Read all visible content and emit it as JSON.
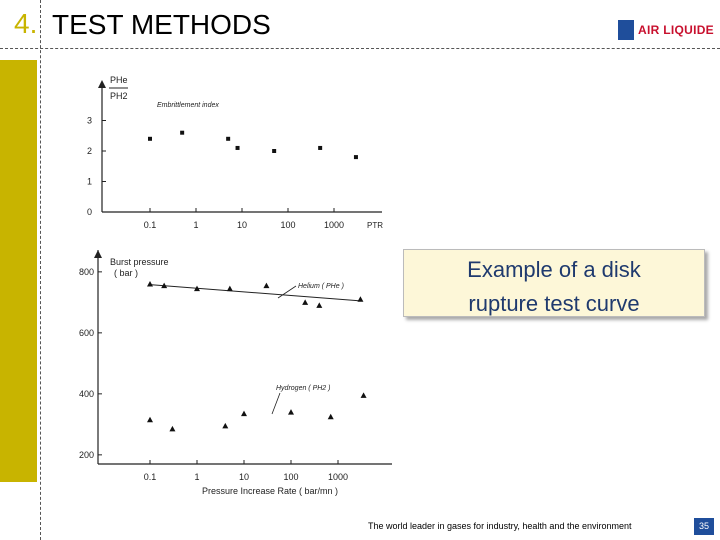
{
  "slide": {
    "number": "4.",
    "title": "TEST METHODS",
    "logo_text": "AIR LIQUIDE",
    "callout_line1": "Example of a disk",
    "callout_line2": "rupture test curve",
    "footer_text": "The world leader in gases for industry, health and the environment",
    "page_number": "35",
    "colors": {
      "accent": "#c8b400",
      "brand_blue": "#1f4e9b",
      "logo_red": "#c8102e",
      "callout_bg": "#fdf7d8"
    }
  },
  "chart_data": [
    {
      "type": "scatter",
      "title": "",
      "ylabel_num": "PHe",
      "ylabel_den": "PH2",
      "annotation": "Embrittlement index",
      "xlabel": "PTR",
      "x_scale": "log",
      "x_ticks": [
        "0.1",
        "1",
        "10",
        "100",
        "1000"
      ],
      "y_ticks": [
        "0",
        "1",
        "2",
        "3"
      ],
      "ylim": [
        0,
        3.5
      ],
      "series": [
        {
          "x": [
            0.1,
            0.5,
            5,
            8,
            50,
            500,
            3000
          ],
          "y": [
            2.4,
            2.6,
            2.4,
            2.1,
            2.0,
            2.1,
            1.8
          ]
        }
      ]
    },
    {
      "type": "scatter",
      "ylabel": "Burst pressure",
      "ylabel_unit": "( bar )",
      "xlabel": "Pressure Increase Rate ( bar/mn )",
      "x_scale": "log",
      "x_ticks": [
        "0.1",
        "1",
        "10",
        "100",
        "1000"
      ],
      "y_ticks": [
        "200",
        "400",
        "600",
        "800"
      ],
      "ylim": [
        200,
        850
      ],
      "series": [
        {
          "name": "Helium ( PHe )",
          "x": [
            0.1,
            0.2,
            1,
            5,
            30,
            200,
            400,
            3000
          ],
          "y": [
            760,
            755,
            745,
            745,
            755,
            700,
            690,
            710
          ]
        },
        {
          "name": "Hydrogen ( PH2 )",
          "x": [
            0.1,
            0.3,
            4,
            10,
            100,
            700,
            3500
          ],
          "y": [
            315,
            285,
            295,
            335,
            340,
            325,
            395
          ]
        }
      ]
    }
  ]
}
